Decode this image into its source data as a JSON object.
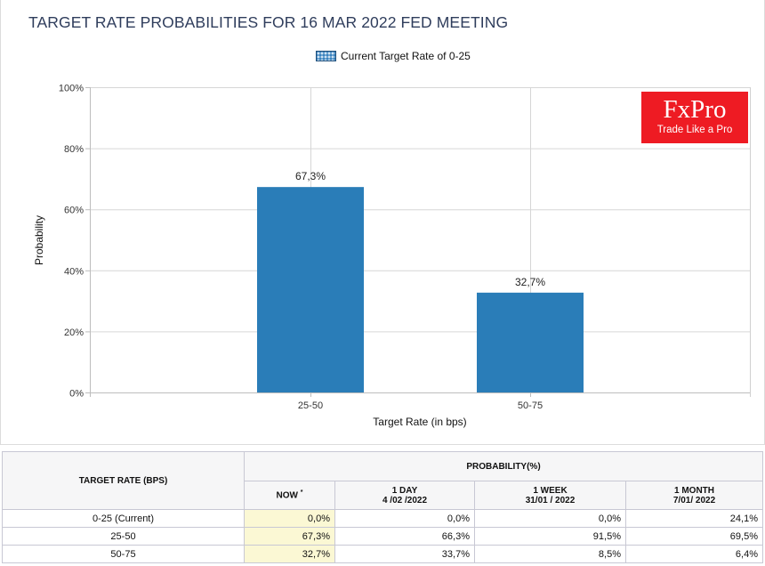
{
  "header": {
    "title": "TARGET RATE PROBABILITIES FOR 16 MAR 2022 FED MEETING"
  },
  "logo": {
    "brand": "FxPro",
    "tagline": "Trade Like a Pro",
    "color": "#ee1b23"
  },
  "chart_data": {
    "type": "bar",
    "title": "TARGET RATE PROBABILITIES FOR 16 MAR 2022 FED MEETING",
    "legend": [
      "Current Target Rate of 0-25"
    ],
    "legend_position": "top-center",
    "categories": [
      "25-50",
      "50-75"
    ],
    "values": [
      67.3,
      32.7
    ],
    "value_labels": [
      "67,3%",
      "32,7%"
    ],
    "xlabel": "Target Rate (in bps)",
    "ylabel": "Probability",
    "ylim": [
      0,
      100
    ],
    "yticks": [
      0,
      20,
      40,
      60,
      80,
      100
    ],
    "ytick_labels": [
      "0%",
      "20%",
      "40%",
      "60%",
      "80%",
      "100%"
    ],
    "grid": true,
    "bar_color": "#2a7db8"
  },
  "table": {
    "header_rate": "TARGET RATE (BPS)",
    "header_prob": "PROBABILITY(%)",
    "columns": [
      {
        "line1": "NOW",
        "mark": "*",
        "line2": ""
      },
      {
        "line1": "1 DAY",
        "line2": "4 /02 /2022"
      },
      {
        "line1": "1 WEEK",
        "line2": "31/01 / 2022"
      },
      {
        "line1": "1 MONTH",
        "line2": "7/01/ 2022"
      }
    ],
    "rows": [
      {
        "rate": "0-25 (Current)",
        "values": [
          "0,0%",
          "0,0%",
          "0,0%",
          "24,1%"
        ]
      },
      {
        "rate": "25-50",
        "values": [
          "67,3%",
          "66,3%",
          "91,5%",
          "69,5%"
        ]
      },
      {
        "rate": "50-75",
        "values": [
          "32,7%",
          "33,7%",
          "8,5%",
          "6,4%"
        ]
      }
    ]
  }
}
